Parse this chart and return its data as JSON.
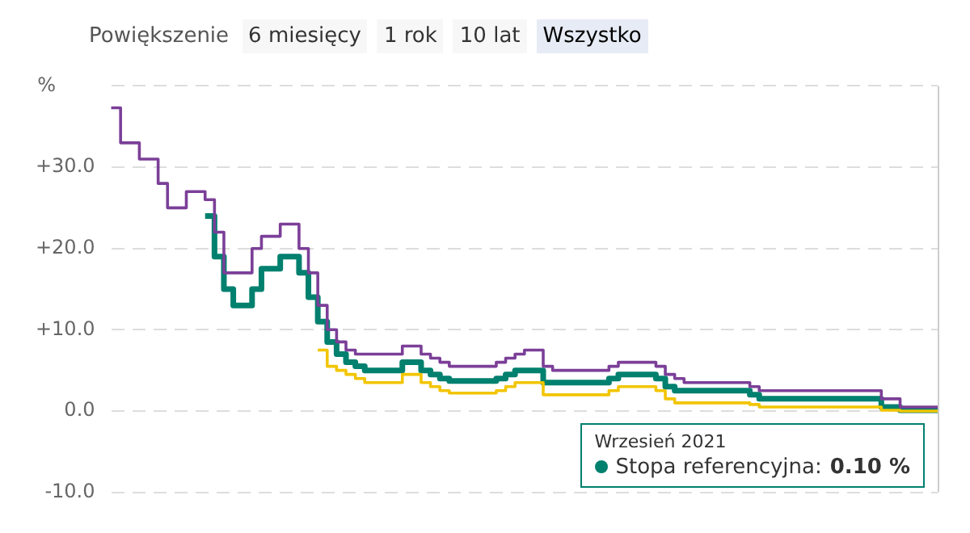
{
  "chart_data": {
    "type": "step",
    "ylabel": "%",
    "annotations": [
      "Powiększenie",
      "6 miesięcy",
      "1 rok",
      "10 lat",
      "Wszystko",
      "Wrzesień 2021"
    ],
    "categories": [
      null,
      null,
      null,
      null,
      null,
      null,
      null,
      null,
      null,
      null,
      null,
      null,
      null,
      null,
      null,
      null,
      null,
      null,
      null,
      null,
      null,
      null,
      null,
      null,
      null,
      null,
      null,
      null,
      null,
      null,
      null,
      null,
      null,
      null,
      null,
      null,
      null,
      null,
      null,
      null,
      null,
      null,
      null,
      null,
      null,
      null,
      null,
      null,
      null,
      null,
      null,
      null,
      null,
      null,
      null,
      null,
      null,
      null,
      null,
      null,
      null,
      null,
      null,
      null,
      null,
      null,
      null,
      null,
      null,
      null,
      null,
      null,
      null,
      null,
      null,
      null,
      null,
      null,
      null,
      null,
      null,
      null,
      null,
      null,
      null,
      null,
      null,
      null,
      null
    ],
    "series": [
      {
        "color": "#7b3f98",
        "values": [
          37.3,
          33,
          33,
          31,
          31,
          28,
          25,
          25,
          27,
          27,
          26,
          22,
          17,
          17,
          17,
          20,
          21.5,
          21.5,
          23,
          23,
          20,
          17,
          13,
          10,
          8.5,
          7.5,
          7,
          7,
          7,
          7,
          7,
          8,
          8,
          7,
          6.5,
          6,
          5.5,
          5.5,
          5.5,
          5.5,
          5.5,
          6,
          6.5,
          7,
          7.5,
          7.5,
          5.5,
          5,
          5,
          5,
          5,
          5,
          5,
          5.5,
          6,
          6,
          6,
          6,
          5.5,
          4.5,
          4,
          3.5,
          3.5,
          3.5,
          3.5,
          3.5,
          3.5,
          3.5,
          3,
          2.5,
          2.5,
          2.5,
          2.5,
          2.5,
          2.5,
          2.5,
          2.5,
          2.5,
          2.5,
          2.5,
          2.5,
          2.5,
          1.5,
          1.5,
          0.5,
          0.5,
          0.5,
          0.5,
          0.5
        ]
      },
      {
        "name": "Stopa referencyjna:",
        "color": "#00806e",
        "values": [
          null,
          null,
          null,
          null,
          null,
          null,
          null,
          null,
          null,
          null,
          24,
          19,
          15,
          13,
          13,
          15,
          17.5,
          17.5,
          19,
          19,
          17,
          14,
          11,
          8.5,
          7,
          6,
          5.5,
          5,
          5,
          5,
          5,
          6,
          6,
          5,
          4.5,
          4,
          3.7,
          3.7,
          3.7,
          3.7,
          3.7,
          4,
          4.5,
          5,
          5,
          5,
          3.5,
          3.5,
          3.5,
          3.5,
          3.5,
          3.5,
          3.5,
          4,
          4.5,
          4.5,
          4.5,
          4.5,
          4,
          3,
          2.5,
          2.5,
          2.5,
          2.5,
          2.5,
          2.5,
          2.5,
          2.5,
          2,
          1.5,
          1.5,
          1.5,
          1.5,
          1.5,
          1.5,
          1.5,
          1.5,
          1.5,
          1.5,
          1.5,
          1.5,
          1.5,
          0.5,
          0.5,
          0.1,
          0.1,
          0.1,
          0.1,
          0.1
        ],
        "value_labels": [
          null,
          null,
          null,
          null,
          null,
          null,
          null,
          null,
          null,
          null,
          null,
          null,
          null,
          null,
          null,
          null,
          null,
          null,
          null,
          null,
          null,
          null,
          null,
          null,
          null,
          null,
          null,
          null,
          null,
          null,
          null,
          null,
          null,
          null,
          null,
          null,
          null,
          null,
          null,
          null,
          null,
          null,
          null,
          null,
          null,
          null,
          null,
          null,
          null,
          null,
          null,
          null,
          null,
          null,
          null,
          null,
          null,
          null,
          null,
          null,
          null,
          null,
          null,
          null,
          null,
          null,
          null,
          null,
          null,
          null,
          null,
          null,
          null,
          null,
          null,
          null,
          null,
          null,
          null,
          null,
          null,
          null,
          null,
          null,
          null,
          null,
          null,
          null,
          "0.10 %"
        ]
      },
      {
        "color": "#f2c500",
        "values": [
          null,
          null,
          null,
          null,
          null,
          null,
          null,
          null,
          null,
          null,
          null,
          null,
          null,
          null,
          null,
          null,
          null,
          null,
          null,
          null,
          null,
          null,
          7.5,
          5.5,
          5,
          4.5,
          4,
          3.5,
          3.5,
          3.5,
          3.5,
          4.5,
          4.5,
          3.5,
          3,
          2.5,
          2.2,
          2.2,
          2.2,
          2.2,
          2.2,
          2.5,
          3,
          3.5,
          3.5,
          3.5,
          2,
          2,
          2,
          2,
          2,
          2,
          2,
          2.5,
          3,
          3,
          3,
          3,
          2.5,
          1.5,
          1,
          1,
          1,
          1,
          1,
          1,
          1,
          1,
          0.8,
          0.5,
          0.5,
          0.5,
          0.5,
          0.5,
          0.5,
          0.5,
          0.5,
          0.5,
          0.5,
          0.5,
          0.5,
          0.5,
          0.1,
          0.1,
          0,
          0,
          0,
          0,
          0
        ]
      }
    ],
    "ylim": [
      -10,
      40
    ],
    "yticks": [
      {
        "value": -10,
        "label": "-10.0"
      },
      {
        "value": 0,
        "label": "0.0"
      },
      {
        "value": 10,
        "label": "+10.0"
      },
      {
        "value": 20,
        "label": "+20.0"
      },
      {
        "value": 30,
        "label": "+30.0"
      },
      {
        "value": 40,
        "label": null
      }
    ],
    "grid": "y",
    "tick_labels": "y",
    "marker": "none",
    "line_style": "solid",
    "legend": "bottom right"
  }
}
